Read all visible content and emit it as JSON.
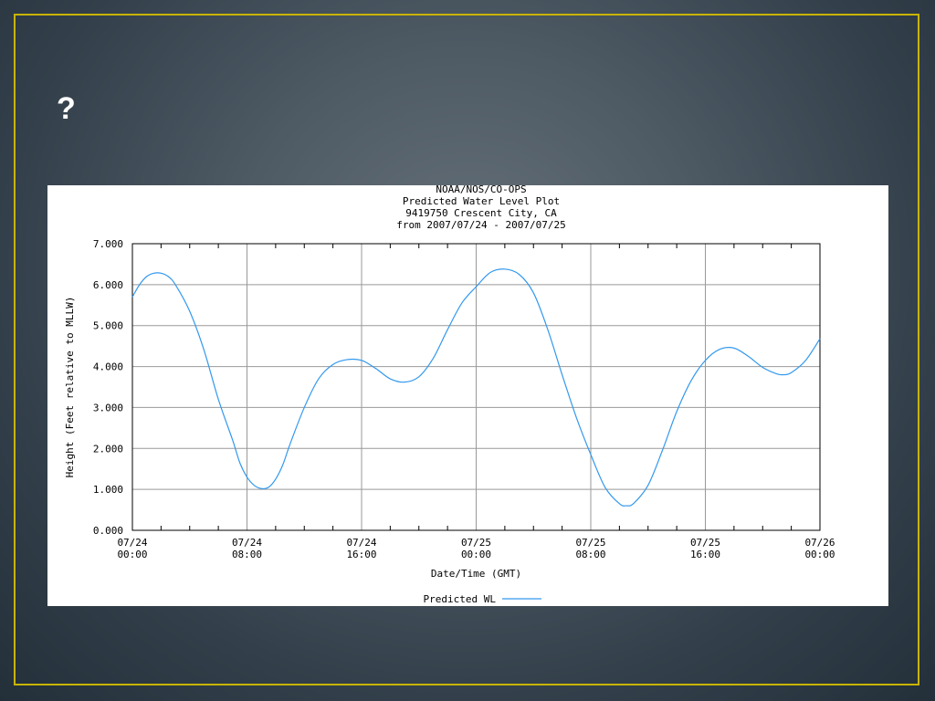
{
  "slide": {
    "title": "?"
  },
  "colors": {
    "frame": "#c8b400",
    "series": "#3399ee",
    "grid": "#999999"
  },
  "chart_data": {
    "type": "line",
    "title": [
      "NOAA/NOS/CO-OPS",
      "Predicted Water Level Plot",
      "9419750 Crescent City, CA",
      "from 2007/07/24 - 2007/07/25"
    ],
    "xlabel": "Date/Time (GMT)",
    "ylabel": "Height (Feet relative to MLLW)",
    "x_unit": "hours",
    "xlim": [
      0,
      48
    ],
    "ylim": [
      0,
      7
    ],
    "grid": true,
    "legend_position": "bottom-center",
    "x_ticks": [
      {
        "value": 0,
        "date": "07/24",
        "time": "00:00"
      },
      {
        "value": 8,
        "date": "07/24",
        "time": "08:00"
      },
      {
        "value": 16,
        "date": "07/24",
        "time": "16:00"
      },
      {
        "value": 24,
        "date": "07/25",
        "time": "00:00"
      },
      {
        "value": 32,
        "date": "07/25",
        "time": "08:00"
      },
      {
        "value": 40,
        "date": "07/25",
        "time": "16:00"
      },
      {
        "value": 48,
        "date": "07/26",
        "time": "00:00"
      }
    ],
    "y_ticks": [
      {
        "value": 0,
        "label": "0.000"
      },
      {
        "value": 1,
        "label": "1.000"
      },
      {
        "value": 2,
        "label": "2.000"
      },
      {
        "value": 3,
        "label": "3.000"
      },
      {
        "value": 4,
        "label": "4.000"
      },
      {
        "value": 5,
        "label": "5.000"
      },
      {
        "value": 6,
        "label": "6.000"
      },
      {
        "value": 7,
        "label": "7.000"
      }
    ],
    "series": [
      {
        "name": "Predicted WL",
        "points": [
          [
            0,
            5.7
          ],
          [
            0.5,
            6.0
          ],
          [
            1,
            6.2
          ],
          [
            1.5,
            6.28
          ],
          [
            2,
            6.28
          ],
          [
            2.5,
            6.2
          ],
          [
            3,
            6.0
          ],
          [
            4,
            5.35
          ],
          [
            5,
            4.4
          ],
          [
            6,
            3.2
          ],
          [
            7,
            2.2
          ],
          [
            7.5,
            1.65
          ],
          [
            8,
            1.3
          ],
          [
            8.5,
            1.1
          ],
          [
            9,
            1.02
          ],
          [
            9.5,
            1.05
          ],
          [
            10,
            1.25
          ],
          [
            10.5,
            1.6
          ],
          [
            11,
            2.1
          ],
          [
            12,
            3.0
          ],
          [
            13,
            3.7
          ],
          [
            14,
            4.05
          ],
          [
            15,
            4.17
          ],
          [
            16,
            4.15
          ],
          [
            17,
            3.95
          ],
          [
            18,
            3.7
          ],
          [
            19,
            3.62
          ],
          [
            20,
            3.75
          ],
          [
            21,
            4.2
          ],
          [
            22,
            4.9
          ],
          [
            23,
            5.55
          ],
          [
            24,
            5.95
          ],
          [
            25,
            6.3
          ],
          [
            26,
            6.38
          ],
          [
            27,
            6.25
          ],
          [
            28,
            5.8
          ],
          [
            29,
            4.9
          ],
          [
            30,
            3.8
          ],
          [
            31,
            2.75
          ],
          [
            32,
            1.85
          ],
          [
            33,
            1.05
          ],
          [
            34,
            0.65
          ],
          [
            34.5,
            0.6
          ],
          [
            35,
            0.66
          ],
          [
            36,
            1.1
          ],
          [
            37,
            1.95
          ],
          [
            38,
            2.9
          ],
          [
            39,
            3.65
          ],
          [
            40,
            4.15
          ],
          [
            41,
            4.42
          ],
          [
            42,
            4.45
          ],
          [
            43,
            4.25
          ],
          [
            44,
            3.98
          ],
          [
            45,
            3.82
          ],
          [
            45.5,
            3.8
          ],
          [
            46,
            3.85
          ],
          [
            47,
            4.15
          ],
          [
            48,
            4.68
          ]
        ]
      }
    ]
  }
}
